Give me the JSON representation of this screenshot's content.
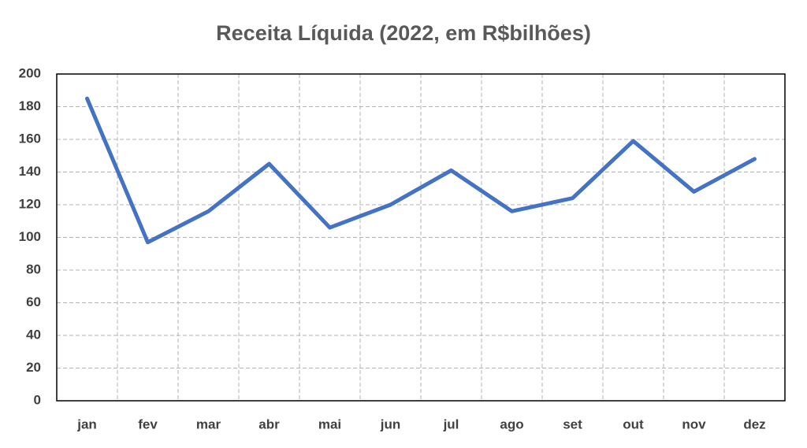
{
  "chart_data": {
    "type": "line",
    "title": "Receita Líquida (2022, em R$bilhões)",
    "categories": [
      "jan",
      "fev",
      "mar",
      "abr",
      "mai",
      "jun",
      "jul",
      "ago",
      "set",
      "out",
      "nov",
      "dez"
    ],
    "values": [
      185,
      97,
      116,
      145,
      106,
      120,
      141,
      116,
      124,
      159,
      128,
      148
    ],
    "color": "#4472c4",
    "ylim": [
      0,
      200
    ],
    "yticks": [
      0,
      20,
      40,
      60,
      80,
      100,
      120,
      140,
      160,
      180,
      200
    ],
    "grid": true
  }
}
